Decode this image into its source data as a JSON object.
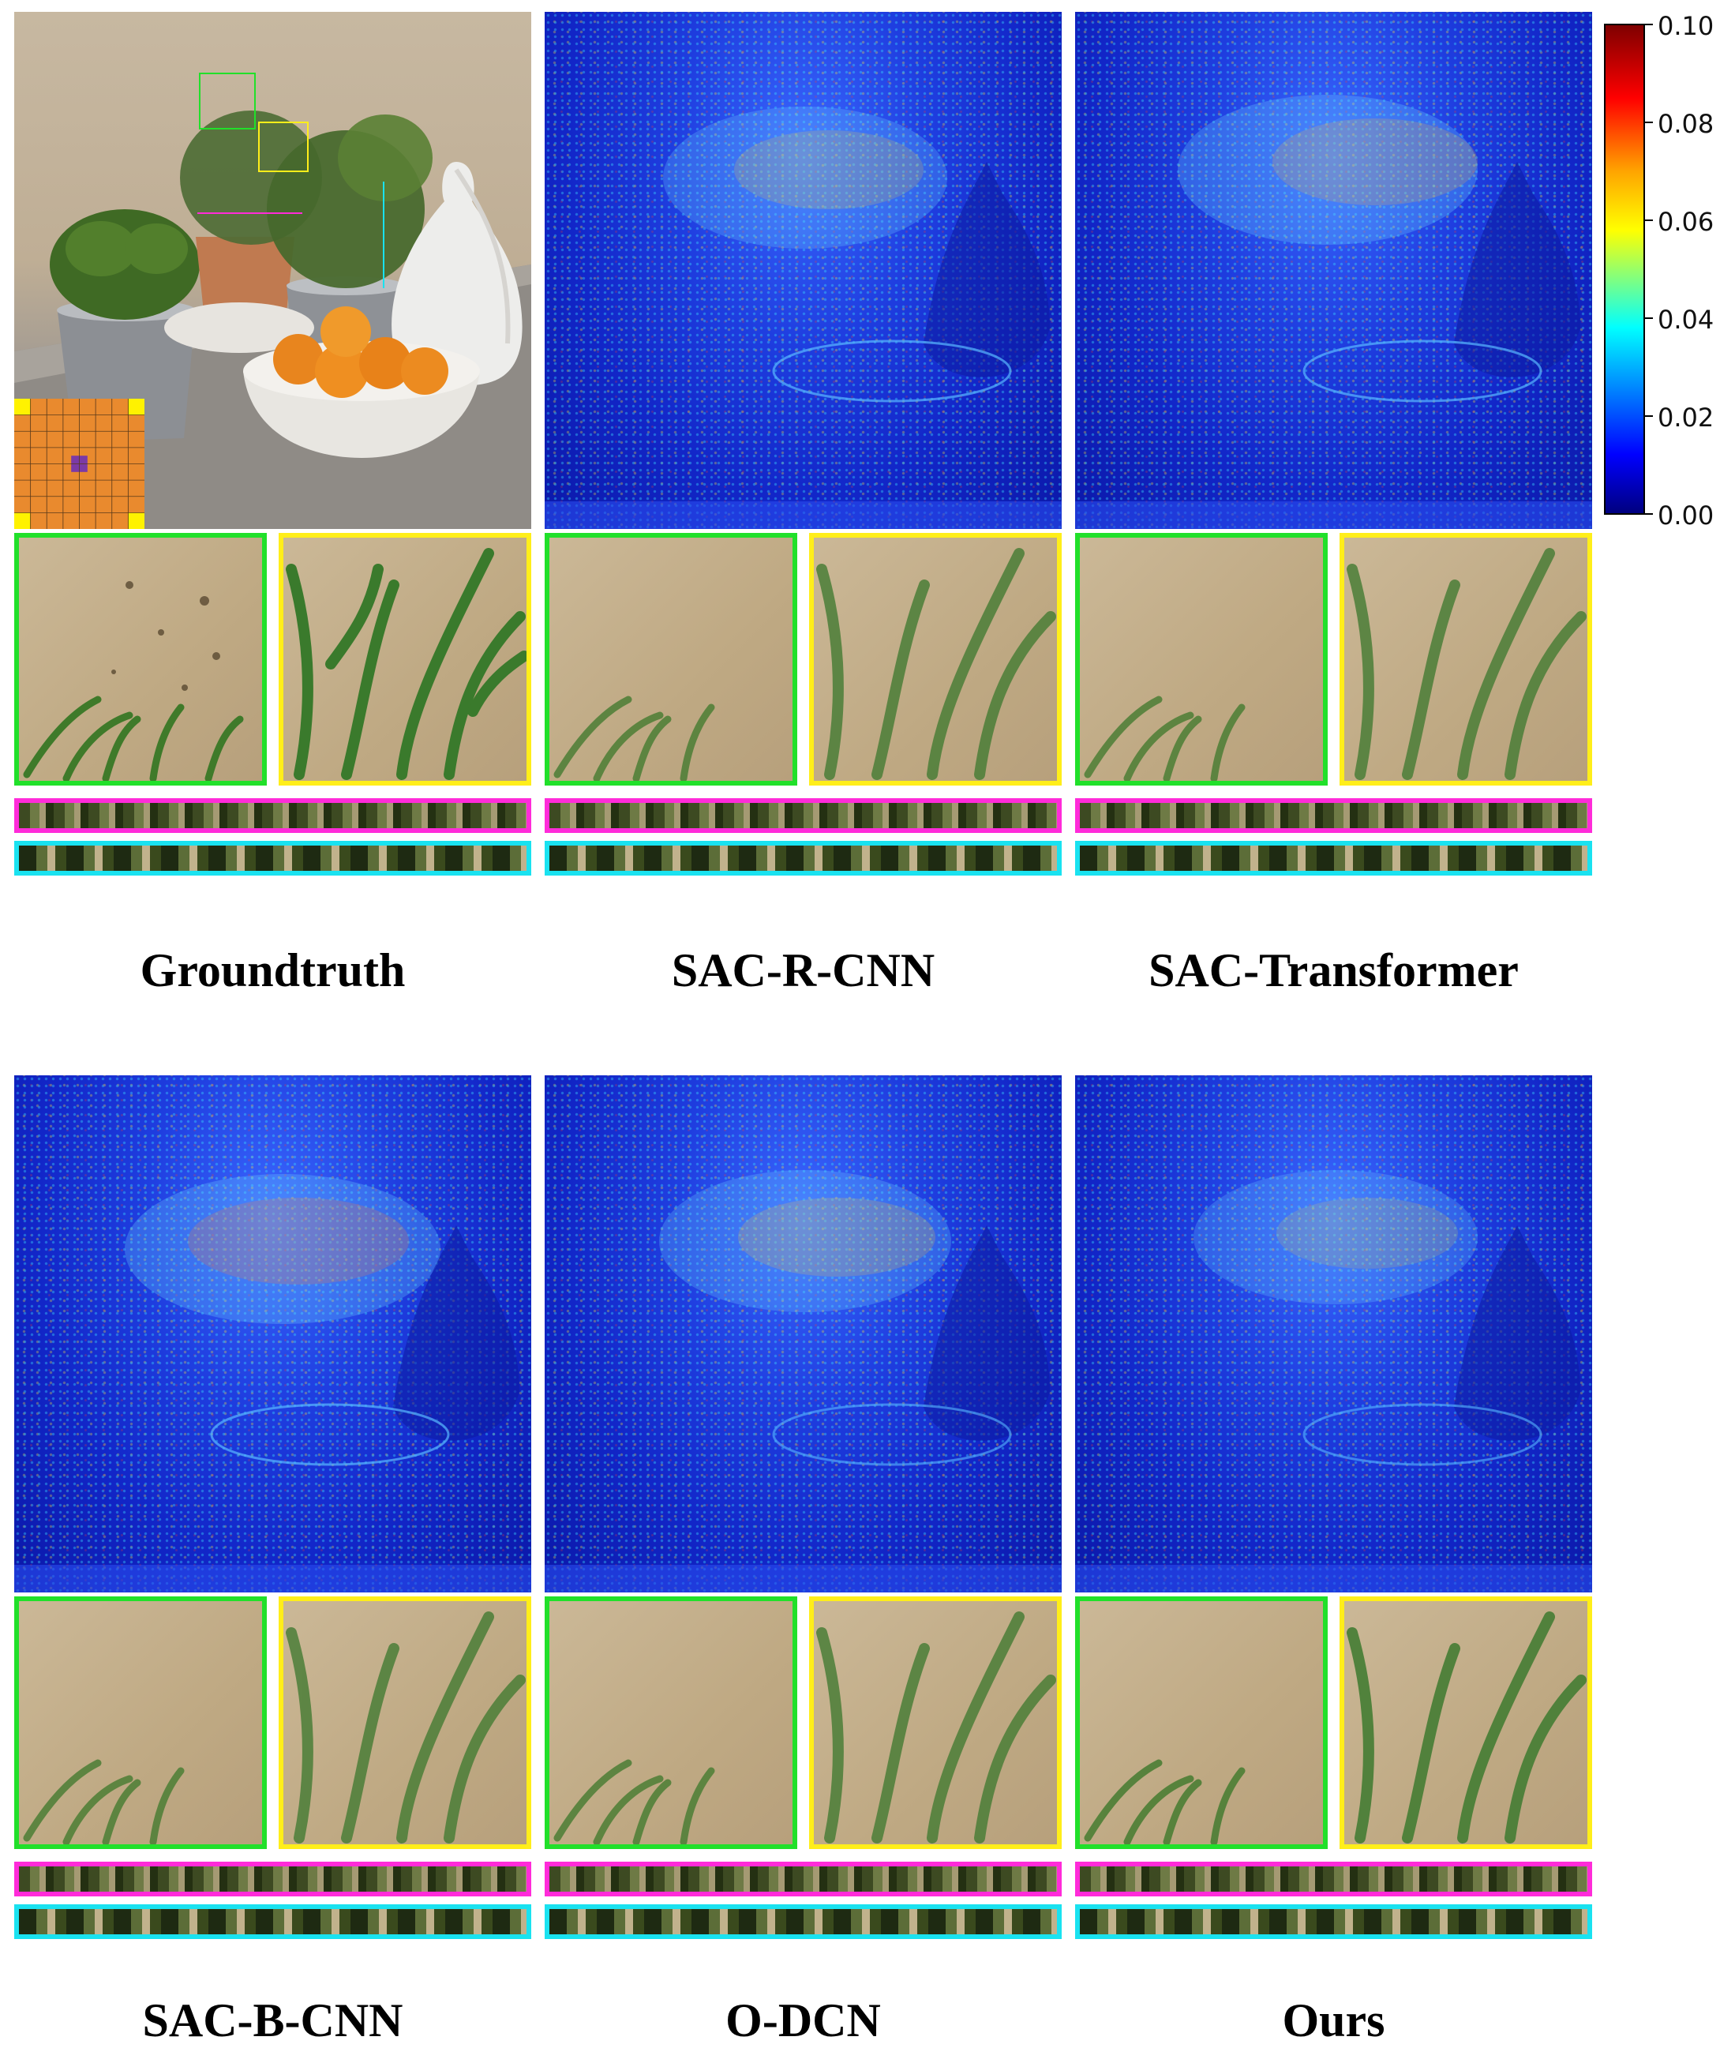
{
  "colorbar": {
    "ticks": [
      "0.10",
      "0.08",
      "0.06",
      "0.04",
      "0.02",
      "0.00"
    ]
  },
  "panels": [
    {
      "caption": "Groundtruth"
    },
    {
      "caption": "SAC-R-CNN"
    },
    {
      "caption": "SAC-Transformer"
    },
    {
      "caption": "SAC-B-CNN"
    },
    {
      "caption": "O-DCN"
    },
    {
      "caption": "Ours"
    }
  ],
  "colors": {
    "crop_green": "#21e02a",
    "crop_yellow": "#ffee1a",
    "strip_magenta": "#ff2bd9",
    "strip_cyan": "#19e2f0"
  }
}
